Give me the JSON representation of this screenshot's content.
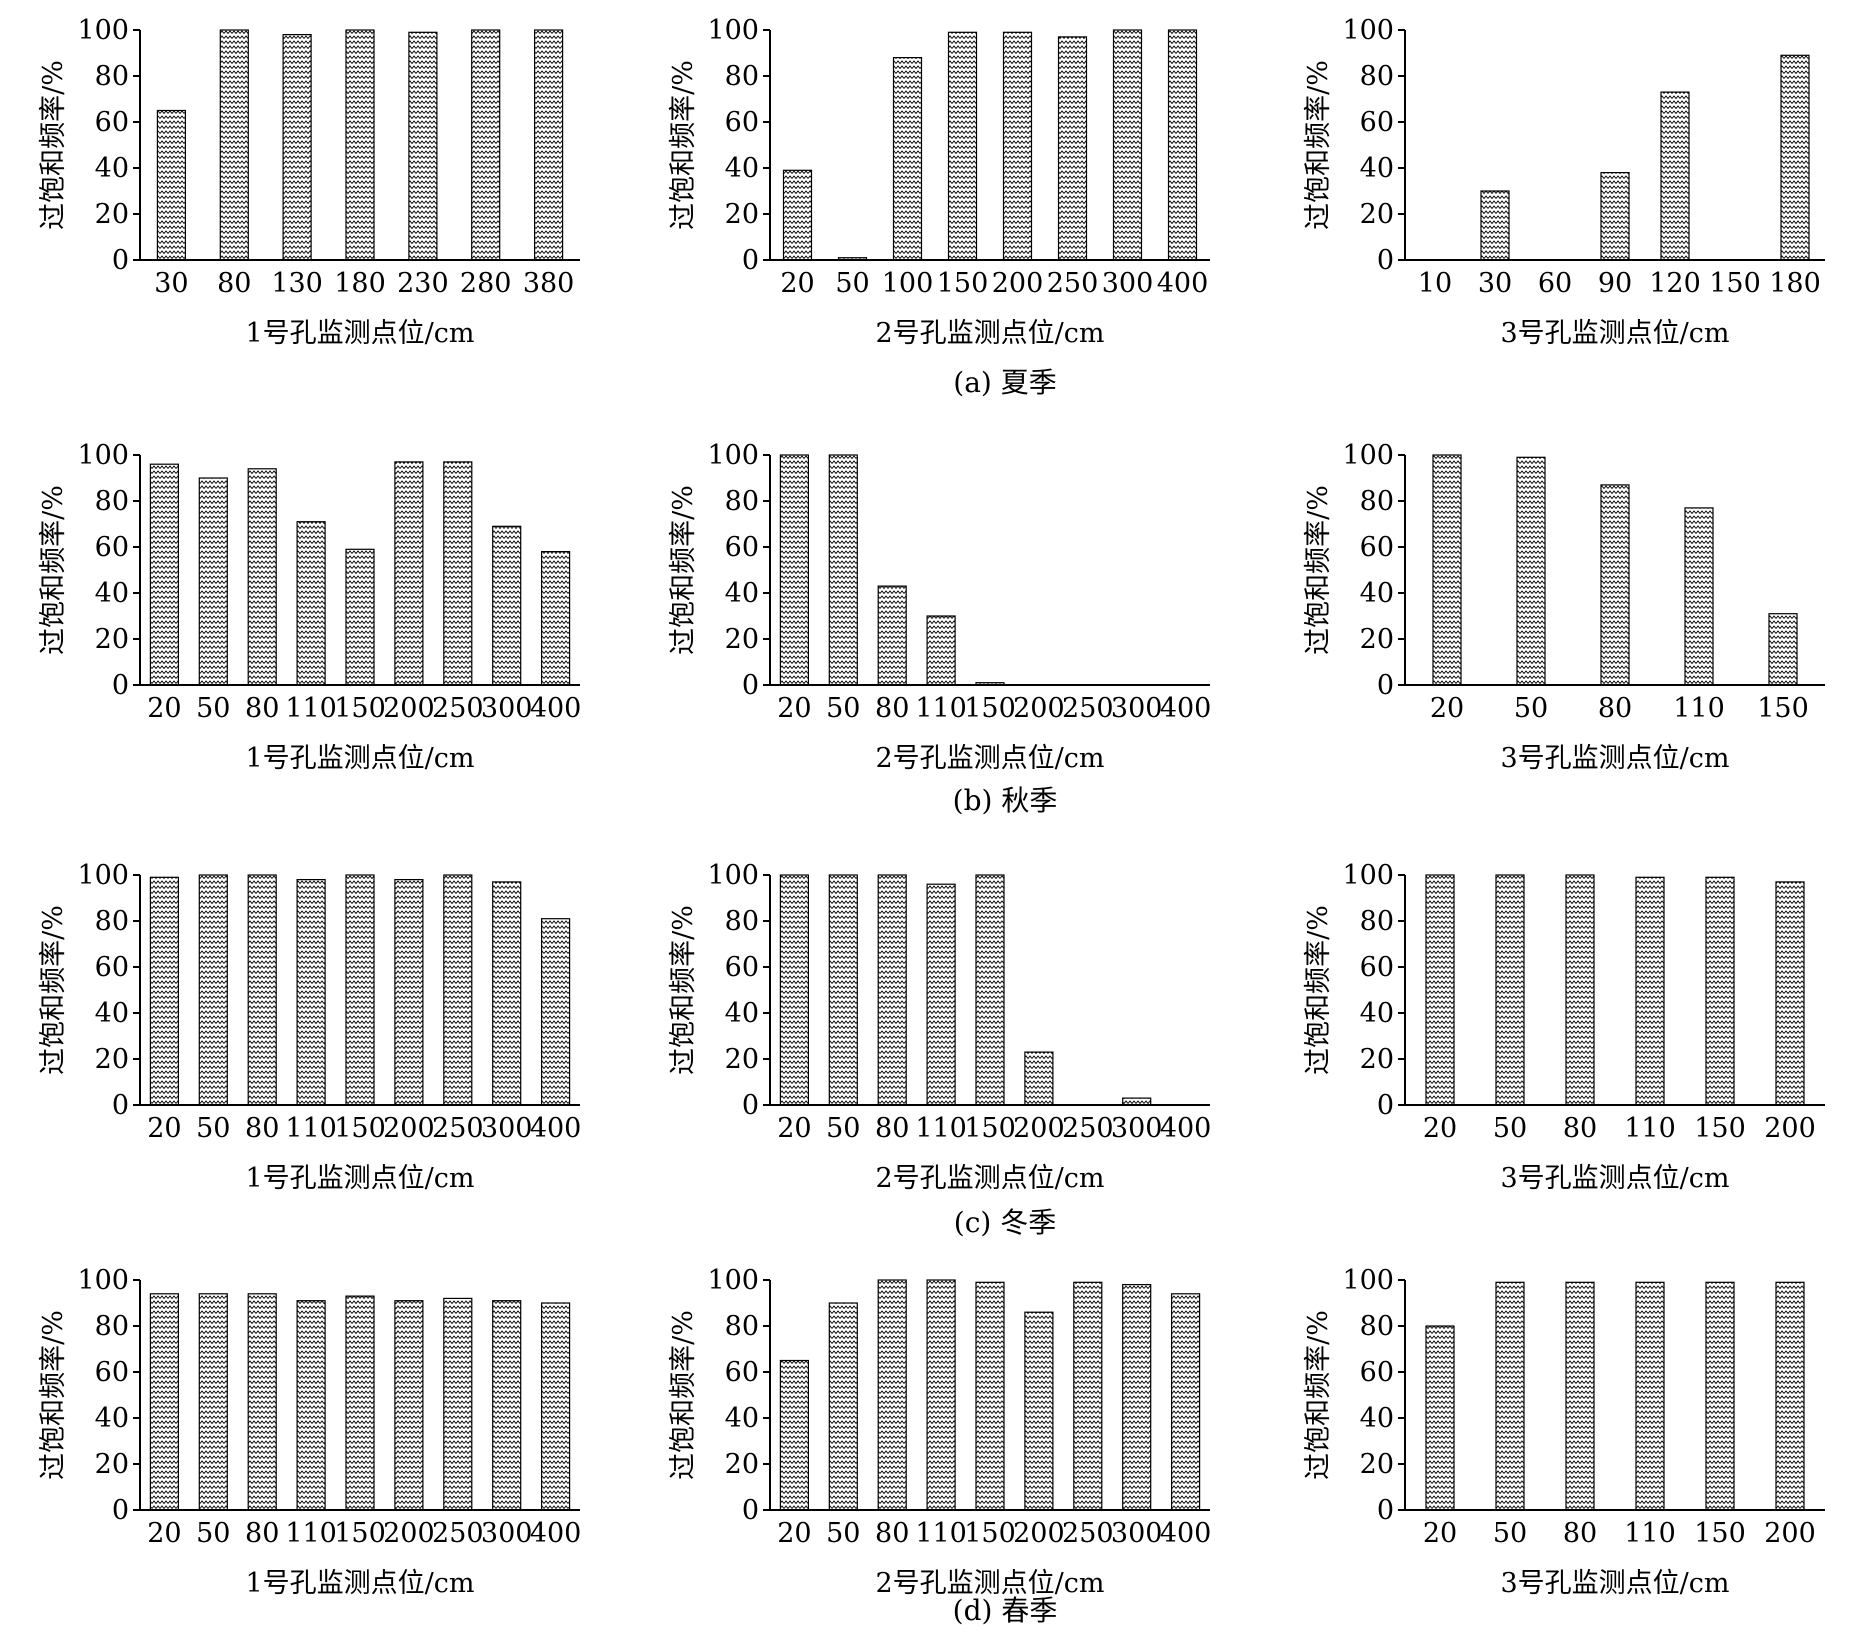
{
  "y_axis_label": "过饱和频率/%",
  "y_ticks": [
    "0",
    "20",
    "40",
    "60",
    "80",
    "100"
  ],
  "captions": [
    "(a) 夏季",
    "(b) 秋季",
    "(c) 冬季",
    "(d) 春季"
  ],
  "colors": {
    "bar_fill": "#ffffff",
    "bar_stroke": "#000000",
    "bar_pattern": "zigzag",
    "axis": "#000000"
  },
  "chart_data": [
    {
      "type": "bar",
      "panel": "a-1",
      "xlabel": "1号孔监测点位/cm",
      "ylabel": "过饱和频率/%",
      "ylim": [
        0,
        100
      ],
      "categories": [
        "30",
        "80",
        "130",
        "180",
        "230",
        "280",
        "380"
      ],
      "values": [
        65,
        100,
        98,
        100,
        99,
        100,
        100
      ]
    },
    {
      "type": "bar",
      "panel": "a-2",
      "xlabel": "2号孔监测点位/cm",
      "ylabel": "过饱和频率/%",
      "ylim": [
        0,
        100
      ],
      "categories": [
        "20",
        "50",
        "100",
        "150",
        "200",
        "250",
        "300",
        "400"
      ],
      "values": [
        39,
        1,
        88,
        99,
        99,
        97,
        100,
        100
      ]
    },
    {
      "type": "bar",
      "panel": "a-3",
      "xlabel": "3号孔监测点位/cm",
      "ylabel": "过饱和频率/%",
      "ylim": [
        0,
        100
      ],
      "categories": [
        "10",
        "30",
        "60",
        "90",
        "120",
        "150",
        "180"
      ],
      "values": [
        0,
        30,
        0,
        38,
        73,
        0,
        89
      ]
    },
    {
      "type": "bar",
      "panel": "b-1",
      "xlabel": "1号孔监测点位/cm",
      "ylabel": "过饱和频率/%",
      "ylim": [
        0,
        100
      ],
      "categories": [
        "20",
        "50",
        "80",
        "110",
        "150",
        "200",
        "250",
        "300",
        "400"
      ],
      "values": [
        96,
        90,
        94,
        71,
        59,
        97,
        97,
        69,
        58
      ]
    },
    {
      "type": "bar",
      "panel": "b-2",
      "xlabel": "2号孔监测点位/cm",
      "ylabel": "过饱和频率/%",
      "ylim": [
        0,
        100
      ],
      "categories": [
        "20",
        "50",
        "80",
        "110",
        "150",
        "200",
        "250",
        "300",
        "400"
      ],
      "values": [
        100,
        100,
        43,
        30,
        1,
        0,
        0,
        0,
        0
      ]
    },
    {
      "type": "bar",
      "panel": "b-3",
      "xlabel": "3号孔监测点位/cm",
      "ylabel": "过饱和频率/%",
      "ylim": [
        0,
        100
      ],
      "categories": [
        "20",
        "50",
        "80",
        "110",
        "150"
      ],
      "values": [
        100,
        99,
        87,
        77,
        31
      ]
    },
    {
      "type": "bar",
      "panel": "c-1",
      "xlabel": "1号孔监测点位/cm",
      "ylabel": "过饱和频率/%",
      "ylim": [
        0,
        100
      ],
      "categories": [
        "20",
        "50",
        "80",
        "110",
        "150",
        "200",
        "250",
        "300",
        "400"
      ],
      "values": [
        99,
        100,
        100,
        98,
        100,
        98,
        100,
        97,
        81
      ]
    },
    {
      "type": "bar",
      "panel": "c-2",
      "xlabel": "2号孔监测点位/cm",
      "ylabel": "过饱和频率/%",
      "ylim": [
        0,
        100
      ],
      "categories": [
        "20",
        "50",
        "80",
        "110",
        "150",
        "200",
        "250",
        "300",
        "400"
      ],
      "values": [
        100,
        100,
        100,
        96,
        100,
        23,
        0,
        3,
        0
      ]
    },
    {
      "type": "bar",
      "panel": "c-3",
      "xlabel": "3号孔监测点位/cm",
      "ylabel": "过饱和频率/%",
      "ylim": [
        0,
        100
      ],
      "categories": [
        "20",
        "50",
        "80",
        "110",
        "150",
        "200"
      ],
      "values": [
        100,
        100,
        100,
        99,
        99,
        97
      ]
    },
    {
      "type": "bar",
      "panel": "d-1",
      "xlabel": "1号孔监测点位/cm",
      "ylabel": "过饱和频率/%",
      "ylim": [
        0,
        100
      ],
      "categories": [
        "20",
        "50",
        "80",
        "110",
        "150",
        "200",
        "250",
        "300",
        "400"
      ],
      "values": [
        94,
        94,
        94,
        91,
        93,
        91,
        92,
        91,
        90
      ]
    },
    {
      "type": "bar",
      "panel": "d-2",
      "xlabel": "2号孔监测点位/cm",
      "ylabel": "过饱和频率/%",
      "ylim": [
        0,
        100
      ],
      "categories": [
        "20",
        "50",
        "80",
        "110",
        "150",
        "200",
        "250",
        "300",
        "400"
      ],
      "values": [
        65,
        90,
        100,
        100,
        99,
        86,
        99,
        98,
        94
      ]
    },
    {
      "type": "bar",
      "panel": "d-3",
      "xlabel": "3号孔监测点位/cm",
      "ylabel": "过饱和频率/%",
      "ylim": [
        0,
        100
      ],
      "categories": [
        "20",
        "50",
        "80",
        "110",
        "150",
        "200"
      ],
      "values": [
        80,
        99,
        99,
        99,
        99,
        99
      ]
    }
  ]
}
